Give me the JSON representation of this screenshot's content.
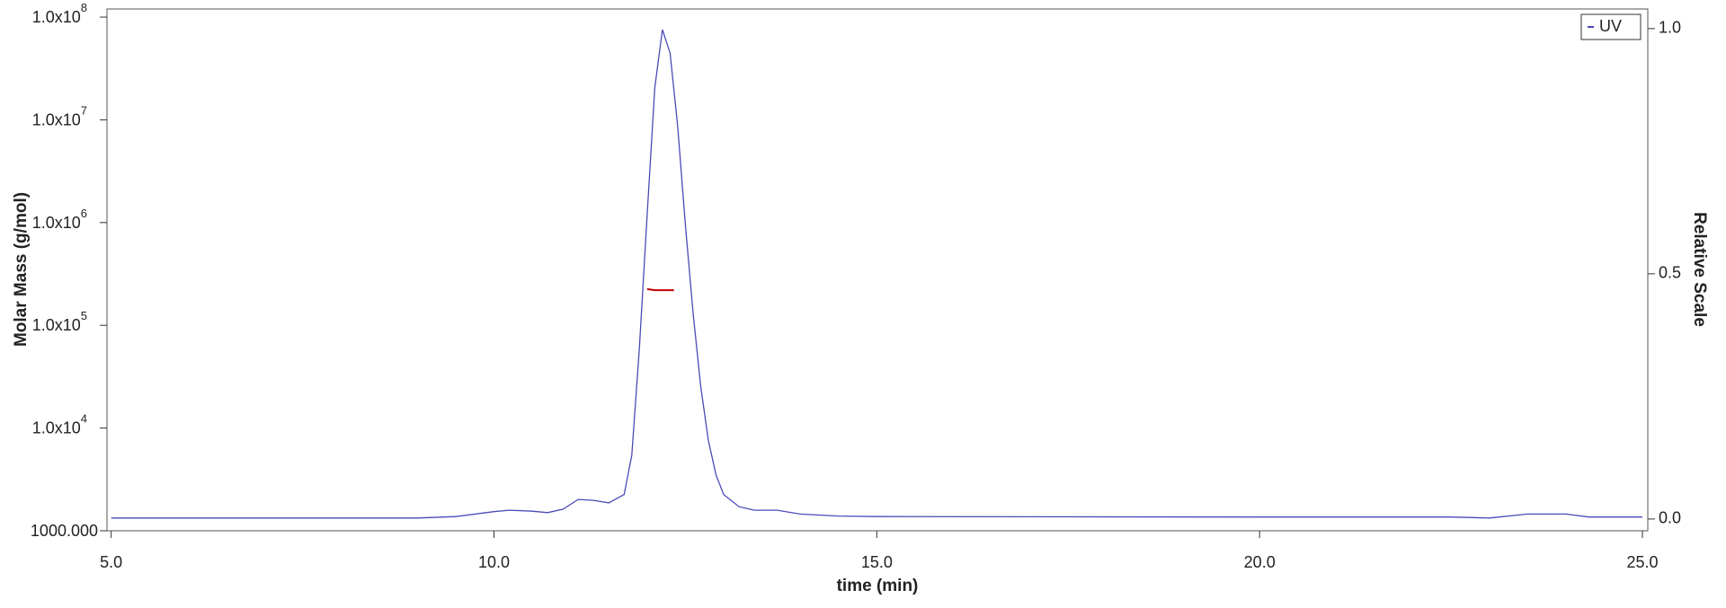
{
  "chart_data": {
    "type": "line",
    "xlabel": "time (min)",
    "ylabel": "Molar Mass (g/mol)",
    "y2label": "Relative Scale",
    "xlim": [
      4.945,
      25.07
    ],
    "xticks": [
      {
        "value": 5,
        "label": "5.0"
      },
      {
        "value": 10,
        "label": "10.0"
      },
      {
        "value": 15,
        "label": "15.0"
      },
      {
        "value": 20,
        "label": "20.0"
      },
      {
        "value": 25,
        "label": "25.0"
      }
    ],
    "ylim": [
      1000,
      120000000
    ],
    "ylog": true,
    "yticks": [
      {
        "value": 1000,
        "label": "1000.000"
      },
      {
        "value": 10000,
        "label": "1.0x10",
        "sup": "4"
      },
      {
        "value": 100000,
        "label": "1.0x10",
        "sup": "5"
      },
      {
        "value": 1000000,
        "label": "1.0x10",
        "sup": "6"
      },
      {
        "value": 10000000,
        "label": "1.0x10",
        "sup": "7"
      },
      {
        "value": 100000000,
        "label": "1.0x10",
        "sup": "8"
      }
    ],
    "y2lim": [
      -0.024,
      1.04
    ],
    "y2ticks": [
      {
        "value": 0,
        "label": "0.0"
      },
      {
        "value": 0.5,
        "label": "0.5"
      },
      {
        "value": 1,
        "label": "1.0"
      }
    ],
    "legend": "top-right",
    "series": [
      {
        "name": "UV",
        "color": "#4a4ab8",
        "axis": "y2",
        "x": [
          5.0,
          9.0,
          9.5,
          10.0,
          10.2,
          10.5,
          10.7,
          10.9,
          11.1,
          11.3,
          11.5,
          11.7,
          11.8,
          11.9,
          12.0,
          12.1,
          12.2,
          12.3,
          12.4,
          12.5,
          12.6,
          12.7,
          12.8,
          12.9,
          13.0,
          13.2,
          13.4,
          13.7,
          14.0,
          14.5,
          15.0,
          20.0,
          22.5,
          23.0,
          23.5,
          24.0,
          24.3,
          25.0
        ],
        "values": [
          0.002,
          0.002,
          0.005,
          0.015,
          0.018,
          0.016,
          0.013,
          0.02,
          0.04,
          0.038,
          0.033,
          0.05,
          0.13,
          0.35,
          0.62,
          0.88,
          0.998,
          0.95,
          0.8,
          0.6,
          0.42,
          0.27,
          0.16,
          0.09,
          0.05,
          0.025,
          0.018,
          0.018,
          0.01,
          0.006,
          0.005,
          0.004,
          0.004,
          0.002,
          0.01,
          0.01,
          0.004,
          0.004
        ]
      },
      {
        "color": "#c00000",
        "axis": "y",
        "x": [
          12.0,
          12.1,
          12.2,
          12.3,
          12.35
        ],
        "values": [
          225000,
          220000,
          220000,
          220000,
          220000
        ]
      }
    ]
  }
}
